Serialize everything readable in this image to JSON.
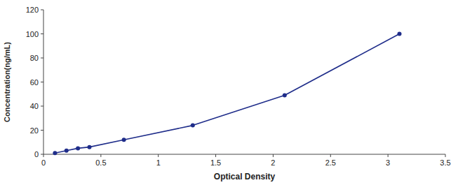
{
  "chart_data": {
    "type": "line",
    "x": [
      0.1,
      0.2,
      0.3,
      0.4,
      0.7,
      1.3,
      2.1,
      3.1
    ],
    "values": [
      1,
      3,
      5,
      6,
      12,
      24,
      49,
      100
    ],
    "color": "#1f2d8a",
    "marker": "circle",
    "xlabel": "Optical Density",
    "ylabel": "Concentration(ng/mL)",
    "xlim": [
      0,
      3.5
    ],
    "ylim": [
      0,
      120
    ],
    "xticks": [
      0,
      0.5,
      1,
      1.5,
      2,
      2.5,
      3,
      3.5
    ],
    "yticks": [
      0,
      20,
      40,
      60,
      80,
      100,
      120
    ],
    "grid": false
  }
}
